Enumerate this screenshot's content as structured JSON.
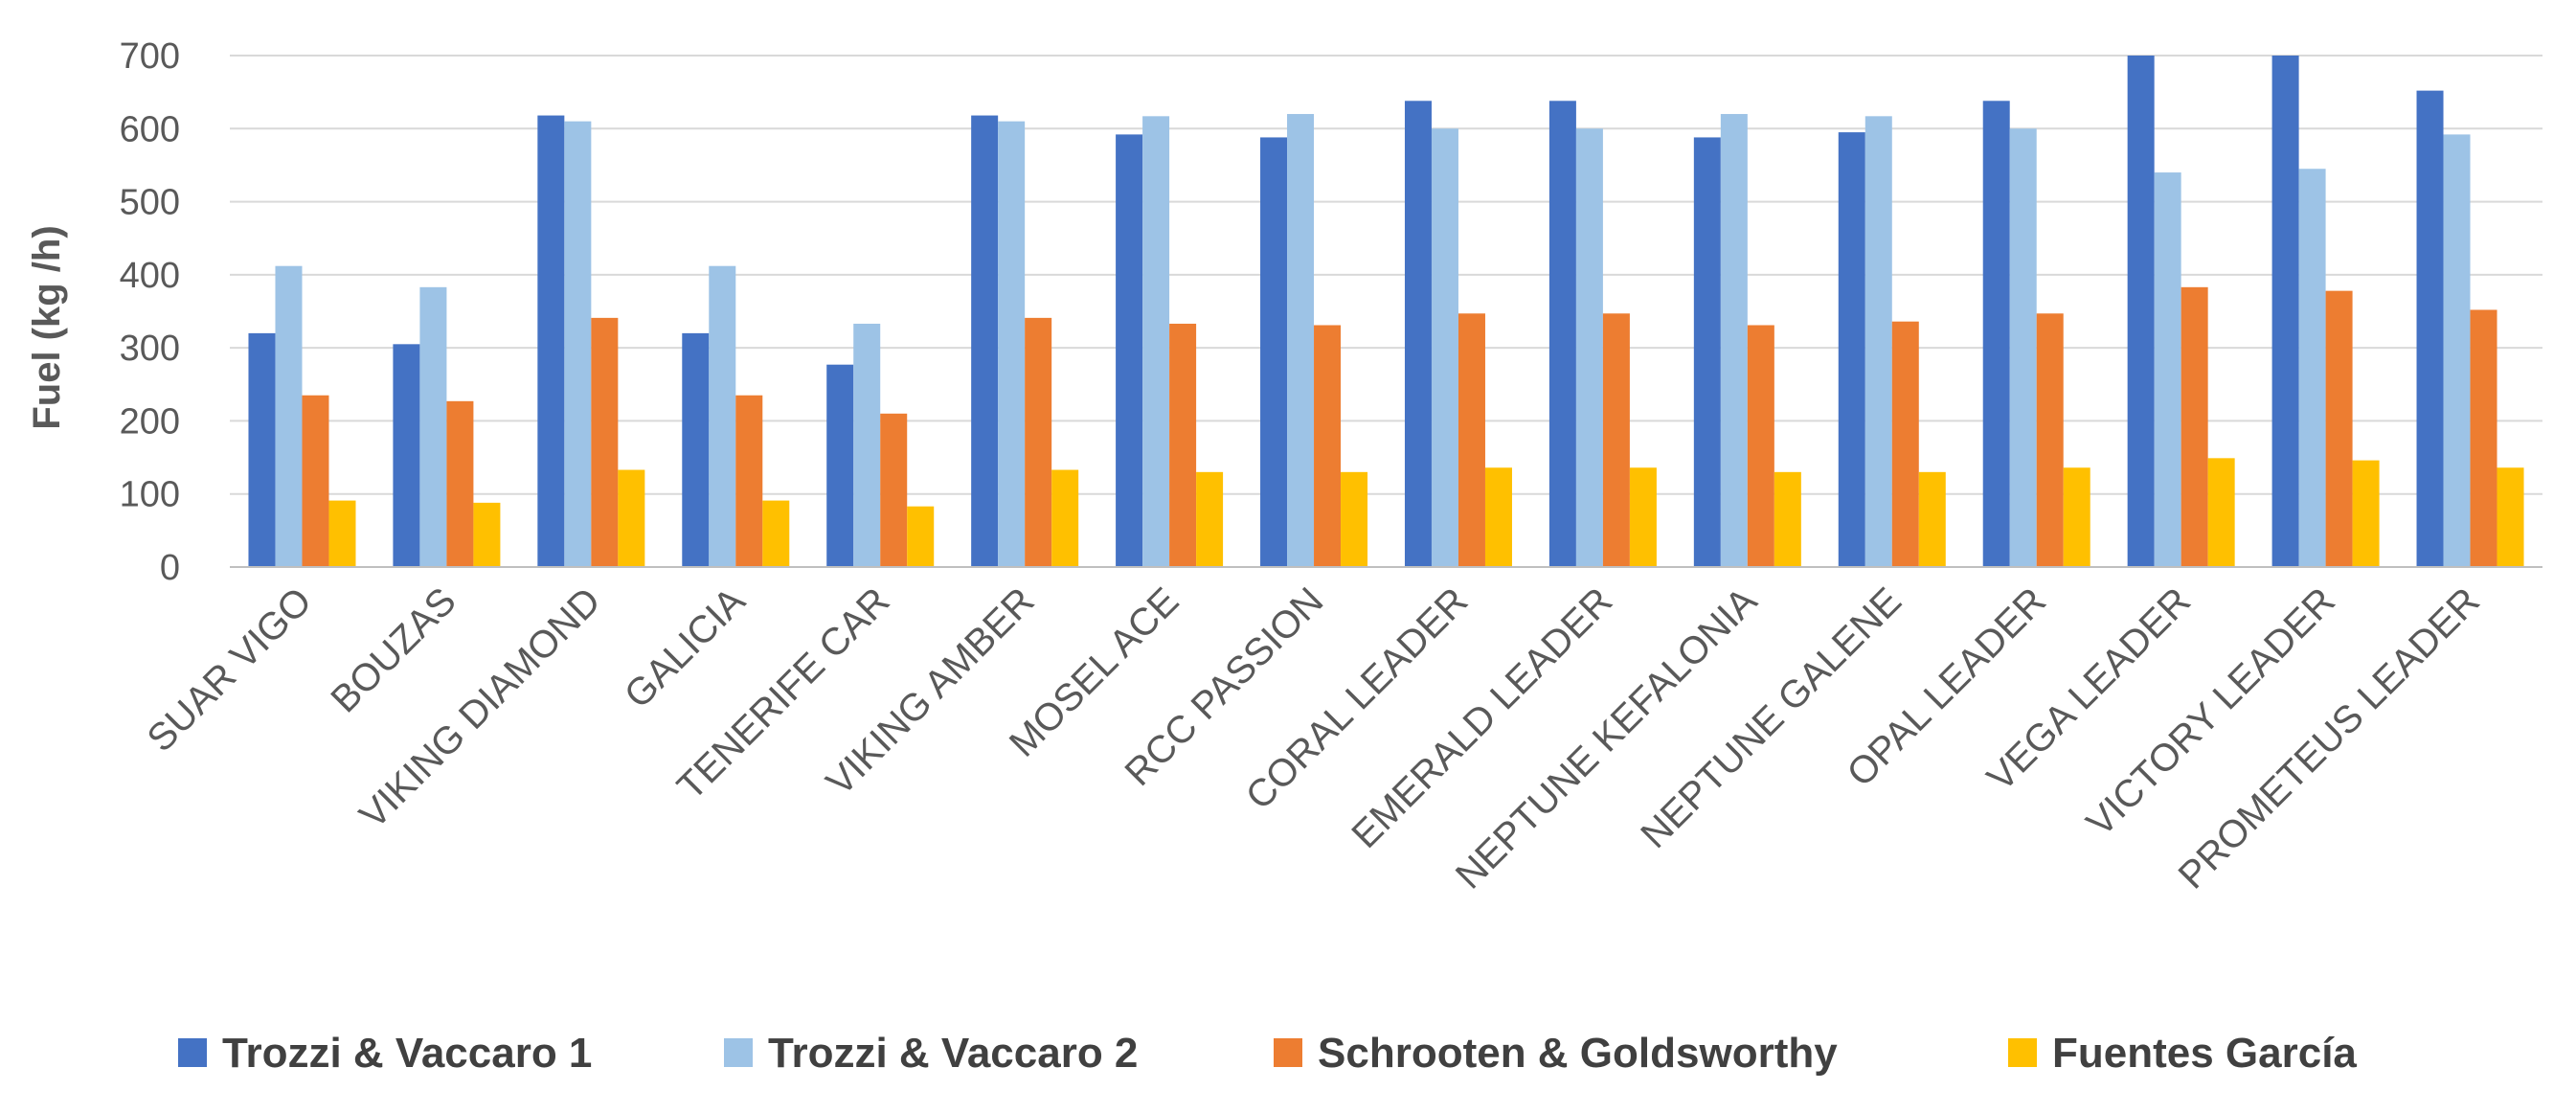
{
  "chart_data": {
    "type": "bar",
    "title": "",
    "xlabel": "",
    "ylabel": "Fuel (kg /h)",
    "ylim": [
      0,
      700
    ],
    "yticks": [
      0,
      100,
      200,
      300,
      400,
      500,
      600,
      700
    ],
    "grid": true,
    "legend_position": "bottom",
    "categories": [
      "SUAR VIGO",
      "BOUZAS",
      "VIKING DIAMOND",
      "GALICIA",
      "TENERIFE CAR",
      "VIKING AMBER",
      "MOSEL ACE",
      "RCC PASSION",
      "CORAL LEADER",
      "EMERALD LEADER",
      "NEPTUNE KEFALONIA",
      "NEPTUNE GALENE",
      "OPAL LEADER",
      "VEGA LEADER",
      "VICTORY LEADER",
      "PROMETEUS LEADER"
    ],
    "series": [
      {
        "name": "Trozzi & Vaccaro 1",
        "color": "#4472c4",
        "values": [
          320,
          305,
          618,
          320,
          277,
          618,
          592,
          588,
          638,
          638,
          588,
          595,
          638,
          700,
          700,
          652
        ]
      },
      {
        "name": "Trozzi & Vaccaro 2",
        "color": "#9dc3e6",
        "values": [
          412,
          383,
          610,
          412,
          333,
          610,
          617,
          620,
          600,
          600,
          620,
          617,
          600,
          540,
          545,
          592
        ]
      },
      {
        "name": "Schrooten & Goldsworthy",
        "color": "#ed7d31",
        "values": [
          235,
          227,
          341,
          235,
          210,
          341,
          333,
          331,
          347,
          347,
          331,
          336,
          347,
          383,
          378,
          352
        ]
      },
      {
        "name": "Fuentes García",
        "color": "#ffc000",
        "values": [
          91,
          88,
          133,
          91,
          83,
          133,
          130,
          130,
          136,
          136,
          130,
          130,
          136,
          149,
          146,
          136
        ]
      }
    ]
  }
}
